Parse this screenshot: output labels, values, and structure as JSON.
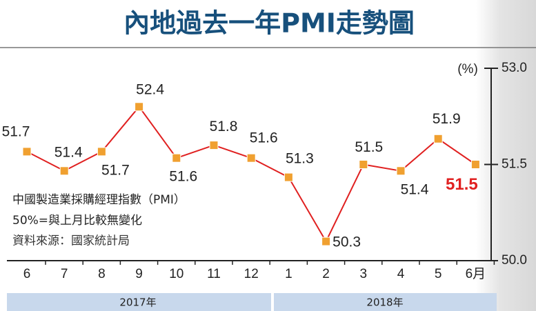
{
  "chart_data": {
    "type": "line",
    "title": "內地過去一年PMI走勢圖",
    "categories": [
      "6",
      "7",
      "8",
      "9",
      "10",
      "11",
      "12",
      "1",
      "2",
      "3",
      "4",
      "5",
      "6月"
    ],
    "series": [
      {
        "name": "中國製造業採購經理指數（PMI）",
        "color": "#e02020",
        "marker_color": "#f0a030",
        "values": [
          51.7,
          51.4,
          51.7,
          52.4,
          51.6,
          51.8,
          51.6,
          51.3,
          50.3,
          51.5,
          51.4,
          51.9,
          51.5
        ]
      }
    ],
    "ylim": [
      50.0,
      53.0
    ],
    "yticks": [
      {
        "value": 50.0,
        "label": "50.0"
      },
      51.5,
      {
        "value": 53.0,
        "label": "53.0"
      }
    ],
    "y_unit": "(%)",
    "notes": [
      "50%=與上月比較無變化",
      "資料來源：國家統計局"
    ],
    "years": [
      "2017年",
      "2018年"
    ]
  }
}
